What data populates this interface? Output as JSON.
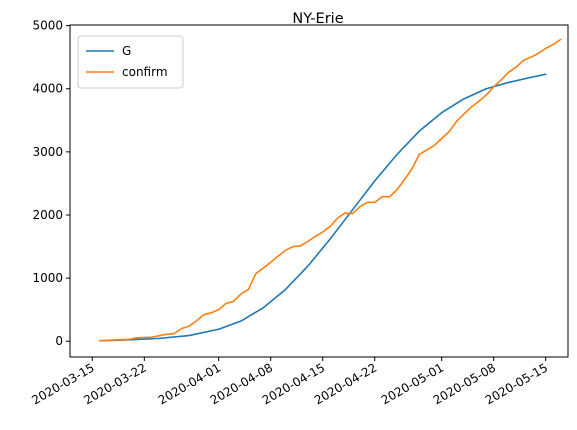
{
  "chart_data": {
    "type": "line",
    "title": "NY-Erie",
    "xlabel": "",
    "ylabel": "",
    "x_tick_labels": [
      "2020-03-15",
      "2020-03-22",
      "2020-04-01",
      "2020-04-08",
      "2020-04-15",
      "2020-04-22",
      "2020-05-01",
      "2020-05-08",
      "2020-05-15"
    ],
    "y_tick_labels": [
      "0",
      "1000",
      "2000",
      "3000",
      "4000",
      "5000"
    ],
    "xlim": [
      "2020-03-12",
      "2020-05-18"
    ],
    "ylim": [
      -250,
      5010
    ],
    "grid": false,
    "legend_position": "upper left",
    "series": [
      {
        "name": "G",
        "color": "#1f77b4",
        "points": [
          [
            "2020-03-16",
            7
          ],
          [
            "2020-03-20",
            22
          ],
          [
            "2020-03-24",
            45
          ],
          [
            "2020-03-28",
            90
          ],
          [
            "2020-04-01",
            190
          ],
          [
            "2020-04-04",
            320
          ],
          [
            "2020-04-07",
            530
          ],
          [
            "2020-04-10",
            820
          ],
          [
            "2020-04-13",
            1190
          ],
          [
            "2020-04-16",
            1620
          ],
          [
            "2020-04-19",
            2080
          ],
          [
            "2020-04-22",
            2540
          ],
          [
            "2020-04-25",
            2960
          ],
          [
            "2020-04-28",
            3330
          ],
          [
            "2020-05-01",
            3620
          ],
          [
            "2020-05-04",
            3840
          ],
          [
            "2020-05-07",
            4000
          ],
          [
            "2020-05-10",
            4100
          ],
          [
            "2020-05-13",
            4180
          ],
          [
            "2020-05-15",
            4230
          ]
        ]
      },
      {
        "name": "confirm",
        "color": "#ff7f0e",
        "points": [
          [
            "2020-03-16",
            7
          ],
          [
            "2020-03-18",
            20
          ],
          [
            "2020-03-20",
            30
          ],
          [
            "2020-03-21",
            55
          ],
          [
            "2020-03-23",
            65
          ],
          [
            "2020-03-25",
            110
          ],
          [
            "2020-03-26",
            120
          ],
          [
            "2020-03-27",
            200
          ],
          [
            "2020-03-28",
            240
          ],
          [
            "2020-03-29",
            320
          ],
          [
            "2020-03-30",
            420
          ],
          [
            "2020-03-31",
            450
          ],
          [
            "2020-04-01",
            500
          ],
          [
            "2020-04-02",
            600
          ],
          [
            "2020-04-03",
            630
          ],
          [
            "2020-04-04",
            750
          ],
          [
            "2020-04-05",
            820
          ],
          [
            "2020-04-06",
            1070
          ],
          [
            "2020-04-07",
            1160
          ],
          [
            "2020-04-08",
            1250
          ],
          [
            "2020-04-09",
            1350
          ],
          [
            "2020-04-10",
            1440
          ],
          [
            "2020-04-11",
            1500
          ],
          [
            "2020-04-12",
            1510
          ],
          [
            "2020-04-13",
            1580
          ],
          [
            "2020-04-14",
            1660
          ],
          [
            "2020-04-15",
            1730
          ],
          [
            "2020-04-16",
            1820
          ],
          [
            "2020-04-17",
            1950
          ],
          [
            "2020-04-18",
            2030
          ],
          [
            "2020-04-19",
            2020
          ],
          [
            "2020-04-20",
            2130
          ],
          [
            "2020-04-21",
            2200
          ],
          [
            "2020-04-22",
            2200
          ],
          [
            "2020-04-23",
            2290
          ],
          [
            "2020-04-24",
            2290
          ],
          [
            "2020-04-25",
            2400
          ],
          [
            "2020-04-26",
            2560
          ],
          [
            "2020-04-27",
            2730
          ],
          [
            "2020-04-28",
            2960
          ],
          [
            "2020-04-29",
            3030
          ],
          [
            "2020-04-30",
            3100
          ],
          [
            "2020-05-01",
            3210
          ],
          [
            "2020-05-02",
            3320
          ],
          [
            "2020-05-03",
            3480
          ],
          [
            "2020-05-04",
            3600
          ],
          [
            "2020-05-05",
            3710
          ],
          [
            "2020-05-06",
            3800
          ],
          [
            "2020-05-07",
            3900
          ],
          [
            "2020-05-08",
            4030
          ],
          [
            "2020-05-09",
            4140
          ],
          [
            "2020-05-10",
            4260
          ],
          [
            "2020-05-11",
            4340
          ],
          [
            "2020-05-12",
            4450
          ],
          [
            "2020-05-13",
            4500
          ],
          [
            "2020-05-14",
            4560
          ],
          [
            "2020-05-15",
            4640
          ],
          [
            "2020-05-16",
            4700
          ],
          [
            "2020-05-17",
            4780
          ]
        ]
      }
    ]
  }
}
